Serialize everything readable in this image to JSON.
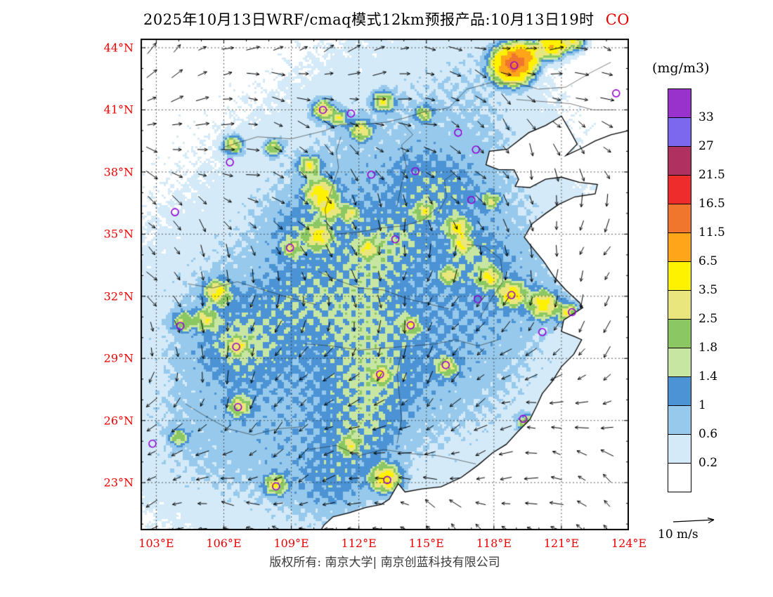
{
  "title": {
    "main": "2025年10月13日WRF/cmaq模式12km预报产品:10月13日19时",
    "species": "CO"
  },
  "colorbar": {
    "units": "(mg/m3)",
    "boundary_labels_top_to_bottom": [
      "33",
      "27",
      "21.5",
      "16.5",
      "11.5",
      "6.5",
      "3.5",
      "2.5",
      "1.8",
      "1.4",
      "1",
      "0.6",
      "0.2"
    ],
    "colors_top_to_bottom": [
      "#9932CC",
      "#7B68EE",
      "#B03060",
      "#EE2C2C",
      "#F0762E",
      "#FFA519",
      "#FFF200",
      "#E9E67D",
      "#8BC863",
      "#C7E6A2",
      "#4B93D4",
      "#96C9EC",
      "#D4EAF8",
      "#FFFFFF"
    ]
  },
  "axes": {
    "lat_labels": [
      "44°N",
      "41°N",
      "38°N",
      "35°N",
      "32°N",
      "29°N",
      "26°N",
      "23°N"
    ],
    "lat_values": [
      44,
      41,
      38,
      35,
      32,
      29,
      26,
      23
    ],
    "lon_labels": [
      "103°E",
      "106°E",
      "109°E",
      "112°E",
      "115°E",
      "118°E",
      "121°E",
      "124°E"
    ],
    "lon_values": [
      103,
      106,
      109,
      112,
      115,
      118,
      121,
      124
    ]
  },
  "wind_legend": {
    "label": "10 m/s"
  },
  "footer": {
    "copyright": "版权所有: 南京大学| 南京创蓝科技有限公司"
  },
  "colors": {
    "axis_label": "#ee0000",
    "title_species": "#e60000",
    "city_marker": "#9400D3",
    "coastline": "#000000",
    "gridline": "#333333"
  },
  "chart_data": {
    "type": "heatmap",
    "title": "2025年10月13日WRF/cmaq模式12km预报产品:10月13日19时 CO",
    "species": "CO",
    "units": "mg/m3",
    "lon_range": [
      102.3,
      124.0
    ],
    "lat_range": [
      20.7,
      44.44
    ],
    "lon_ticks": [
      103,
      106,
      109,
      112,
      115,
      118,
      121,
      124
    ],
    "lat_ticks": [
      23,
      26,
      29,
      32,
      35,
      38,
      41,
      44
    ],
    "levels": [
      0.2,
      0.6,
      1,
      1.4,
      1.8,
      2.5,
      3.5,
      6.5,
      11.5,
      16.5,
      21.5,
      27,
      33
    ],
    "level_colors_ascending": [
      "#FFFFFF",
      "#D4EAF8",
      "#96C9EC",
      "#4B93D4",
      "#C7E6A2",
      "#8BC863",
      "#E9E67D",
      "#FFF200",
      "#FFA519",
      "#F0762E",
      "#EE2C2C",
      "#B03060",
      "#7B68EE",
      "#9932CC"
    ],
    "wind_reference": {
      "speed": 10,
      "units": "m/s"
    },
    "city_markers": [
      [
        111.65,
        40.82
      ],
      [
        116.41,
        39.9
      ],
      [
        117.2,
        39.08
      ],
      [
        114.51,
        38.04
      ],
      [
        112.55,
        37.87
      ],
      [
        106.27,
        38.47
      ],
      [
        103.83,
        36.06
      ],
      [
        108.94,
        34.34
      ],
      [
        113.62,
        34.75
      ],
      [
        117.0,
        36.65
      ],
      [
        117.28,
        31.86
      ],
      [
        118.78,
        32.06
      ],
      [
        121.47,
        31.23
      ],
      [
        120.15,
        30.27
      ],
      [
        114.3,
        30.6
      ],
      [
        112.94,
        28.23
      ],
      [
        115.86,
        28.68
      ],
      [
        104.07,
        30.57
      ],
      [
        106.55,
        29.56
      ],
      [
        106.63,
        26.65
      ],
      [
        102.83,
        24.88
      ],
      [
        108.32,
        22.82
      ],
      [
        113.26,
        23.13
      ],
      [
        119.3,
        26.08
      ],
      [
        123.43,
        41.8
      ],
      [
        118.9,
        43.15
      ],
      [
        110.4,
        41.0
      ]
    ],
    "coastline": [
      [
        124.0,
        40.0
      ],
      [
        123.2,
        39.8
      ],
      [
        122.5,
        39.5
      ],
      [
        121.9,
        39.15
      ],
      [
        121.2,
        38.8
      ],
      [
        121.7,
        39.35
      ],
      [
        121.4,
        39.95
      ],
      [
        121.0,
        40.7
      ],
      [
        120.3,
        40.25
      ],
      [
        119.55,
        39.9
      ],
      [
        118.6,
        39.1
      ],
      [
        117.8,
        39.0
      ],
      [
        117.65,
        38.35
      ],
      [
        118.2,
        38.12
      ],
      [
        118.9,
        38.1
      ],
      [
        119.1,
        37.65
      ],
      [
        118.95,
        37.3
      ],
      [
        119.6,
        37.25
      ],
      [
        120.3,
        37.65
      ],
      [
        121.0,
        37.75
      ],
      [
        121.8,
        37.5
      ],
      [
        122.6,
        37.4
      ],
      [
        122.5,
        36.95
      ],
      [
        121.6,
        36.8
      ],
      [
        120.9,
        36.45
      ],
      [
        120.3,
        36.0
      ],
      [
        119.7,
        35.5
      ],
      [
        119.35,
        34.85
      ],
      [
        119.6,
        34.5
      ],
      [
        120.2,
        33.7
      ],
      [
        120.7,
        32.9
      ],
      [
        121.2,
        32.3
      ],
      [
        121.8,
        31.7
      ],
      [
        121.95,
        31.45
      ],
      [
        121.1,
        30.85
      ],
      [
        121.0,
        30.3
      ],
      [
        121.6,
        30.05
      ],
      [
        121.9,
        29.9
      ],
      [
        121.55,
        29.2
      ],
      [
        121.0,
        28.6
      ],
      [
        120.6,
        27.9
      ],
      [
        120.15,
        27.3
      ],
      [
        119.9,
        26.7
      ],
      [
        119.6,
        26.05
      ],
      [
        119.05,
        25.45
      ],
      [
        118.55,
        24.85
      ],
      [
        117.95,
        24.45
      ],
      [
        117.3,
        23.85
      ],
      [
        116.55,
        23.25
      ],
      [
        115.65,
        22.8
      ],
      [
        114.8,
        22.7
      ],
      [
        114.05,
        22.55
      ],
      [
        113.75,
        22.95
      ],
      [
        113.35,
        22.2
      ],
      [
        113.0,
        21.95
      ],
      [
        112.3,
        21.8
      ],
      [
        111.6,
        21.55
      ],
      [
        110.85,
        21.35
      ],
      [
        110.45,
        20.95
      ],
      [
        110.25,
        20.6
      ]
    ],
    "province_borders": [
      [
        [
          106.0,
          39.2
        ],
        [
          107.5,
          39.7
        ],
        [
          109.0,
          39.6
        ],
        [
          110.5,
          40.0
        ],
        [
          111.2,
          40.3
        ],
        [
          112.2,
          40.3
        ],
        [
          113.2,
          40.4
        ],
        [
          114.0,
          40.6
        ],
        [
          114.9,
          40.9
        ],
        [
          116.0,
          41.1
        ],
        [
          116.8,
          42.0
        ],
        [
          117.8,
          42.3
        ],
        [
          119.0,
          42.3
        ],
        [
          120.0,
          42.0
        ],
        [
          121.2,
          42.1
        ],
        [
          122.3,
          42.8
        ],
        [
          123.2,
          43.3
        ]
      ],
      [
        [
          110.9,
          34.6
        ],
        [
          110.6,
          35.3
        ],
        [
          110.5,
          36.2
        ],
        [
          110.8,
          37.2
        ],
        [
          111.1,
          38.2
        ],
        [
          111.0,
          39.0
        ],
        [
          111.2,
          39.7
        ]
      ],
      [
        [
          113.7,
          36.4
        ],
        [
          113.9,
          37.4
        ],
        [
          114.1,
          38.3
        ],
        [
          113.9,
          39.3
        ],
        [
          114.4,
          39.8
        ],
        [
          113.9,
          40.4
        ]
      ],
      [
        [
          110.2,
          33.2
        ],
        [
          111.0,
          32.8
        ],
        [
          112.0,
          32.4
        ],
        [
          113.1,
          32.3
        ],
        [
          114.1,
          31.9
        ],
        [
          115.2,
          31.6
        ],
        [
          116.0,
          31.4
        ]
      ],
      [
        [
          111.0,
          35.0
        ],
        [
          112.0,
          35.1
        ],
        [
          113.0,
          35.3
        ],
        [
          114.0,
          35.4
        ],
        [
          114.9,
          35.7
        ],
        [
          115.4,
          36.2
        ]
      ],
      [
        [
          115.5,
          36.0
        ],
        [
          115.9,
          36.8
        ],
        [
          115.8,
          37.6
        ],
        [
          116.3,
          38.0
        ]
      ],
      [
        [
          109.6,
          29.7
        ],
        [
          110.8,
          29.6
        ],
        [
          112.0,
          29.4
        ],
        [
          113.2,
          29.5
        ],
        [
          114.3,
          29.6
        ],
        [
          115.4,
          29.7
        ],
        [
          116.3,
          29.9
        ],
        [
          117.3,
          29.6
        ],
        [
          118.2,
          29.9
        ]
      ],
      [
        [
          113.7,
          24.9
        ],
        [
          113.9,
          26.1
        ],
        [
          113.8,
          27.2
        ],
        [
          113.7,
          28.3
        ],
        [
          113.9,
          29.4
        ]
      ],
      [
        [
          109.8,
          24.6
        ],
        [
          111.0,
          24.8
        ],
        [
          112.0,
          24.3
        ],
        [
          113.1,
          24.6
        ],
        [
          114.3,
          24.4
        ],
        [
          115.5,
          24.3
        ],
        [
          116.4,
          24.1
        ],
        [
          117.2,
          23.9
        ]
      ],
      [
        [
          104.4,
          32.6
        ],
        [
          105.5,
          32.4
        ],
        [
          106.6,
          32.7
        ],
        [
          107.8,
          32.3
        ],
        [
          109.0,
          31.9
        ],
        [
          110.1,
          31.6
        ]
      ],
      [
        [
          104.3,
          26.8
        ],
        [
          105.2,
          26.2
        ],
        [
          106.2,
          25.6
        ],
        [
          107.3,
          25.3
        ],
        [
          108.4,
          25.6
        ],
        [
          109.5,
          25.7
        ]
      ],
      [
        [
          117.4,
          31.0
        ],
        [
          117.9,
          31.9
        ],
        [
          118.4,
          32.7
        ],
        [
          118.3,
          33.8
        ],
        [
          117.6,
          34.4
        ],
        [
          116.8,
          34.5
        ]
      ],
      [
        [
          119.0,
          41.5
        ],
        [
          120.2,
          41.4
        ],
        [
          121.4,
          41.3
        ],
        [
          122.4,
          41.0
        ],
        [
          123.4,
          41.0
        ]
      ]
    ],
    "field_blobs": {
      "base": [
        [
          112.0,
          31.0,
          0.42,
          7.0
        ],
        [
          109.0,
          27.5,
          0.36,
          5.0
        ],
        [
          115.5,
          35.5,
          0.34,
          4.0
        ],
        [
          113.5,
          41.8,
          0.24,
          2.8
        ],
        [
          117.5,
          39.0,
          0.28,
          2.2
        ],
        [
          106.5,
          30.5,
          0.4,
          2.4
        ],
        [
          111.0,
          36.5,
          0.32,
          2.8
        ],
        [
          119.0,
          32.5,
          0.36,
          2.2
        ],
        [
          116.5,
          28.5,
          0.34,
          2.8
        ],
        [
          110.0,
          23.5,
          0.34,
          2.4
        ],
        [
          104.6,
          24.8,
          0.28,
          2.2
        ],
        [
          117.6,
          43.4,
          0.3,
          1.8
        ],
        [
          112.5,
          33.8,
          0.5,
          1.1
        ],
        [
          112.2,
          30.8,
          0.55,
          1.4
        ],
        [
          112.5,
          27.8,
          0.6,
          1.4
        ],
        [
          112.2,
          25.3,
          0.5,
          1.1
        ],
        [
          106.8,
          29.7,
          0.55,
          1.2
        ],
        [
          109.4,
          35.3,
          0.45,
          1.0
        ],
        [
          117.1,
          33.9,
          0.5,
          0.9
        ],
        [
          113.9,
          34.9,
          0.4,
          0.9
        ],
        [
          110.9,
          22.9,
          0.45,
          1.0
        ],
        [
          116.3,
          36.8,
          0.35,
          0.9
        ],
        [
          114.8,
          37.6,
          0.38,
          1.0
        ],
        [
          109.6,
          32.0,
          0.4,
          1.2
        ]
      ],
      "hotspots": [
        [
          118.85,
          43.2,
          13.0,
          0.5
        ],
        [
          119.4,
          43.6,
          5.0,
          0.35
        ],
        [
          120.6,
          44.15,
          6.0,
          0.4
        ],
        [
          121.6,
          44.3,
          3.0,
          0.3
        ],
        [
          110.4,
          41.0,
          3.2,
          0.3
        ],
        [
          111.1,
          40.6,
          2.4,
          0.25
        ],
        [
          112.1,
          40.0,
          2.8,
          0.3
        ],
        [
          113.1,
          41.4,
          2.6,
          0.3
        ],
        [
          114.9,
          40.8,
          2.0,
          0.25
        ],
        [
          106.4,
          39.3,
          2.6,
          0.3
        ],
        [
          108.2,
          39.2,
          2.4,
          0.25
        ],
        [
          109.8,
          38.3,
          2.8,
          0.3
        ],
        [
          110.3,
          37.0,
          3.8,
          0.4
        ],
        [
          110.7,
          36.2,
          3.0,
          0.3
        ],
        [
          111.6,
          36.0,
          2.2,
          0.25
        ],
        [
          110.2,
          34.9,
          3.2,
          0.35
        ],
        [
          112.4,
          34.3,
          2.4,
          0.25
        ],
        [
          109.0,
          34.3,
          2.0,
          0.25
        ],
        [
          116.4,
          35.3,
          3.2,
          0.3
        ],
        [
          116.6,
          34.5,
          2.8,
          0.25
        ],
        [
          116.0,
          33.0,
          2.2,
          0.25
        ],
        [
          117.8,
          32.9,
          2.8,
          0.3
        ],
        [
          118.8,
          32.1,
          4.0,
          0.35
        ],
        [
          120.2,
          31.6,
          3.6,
          0.4
        ],
        [
          121.3,
          31.2,
          2.8,
          0.3
        ],
        [
          105.7,
          32.2,
          3.2,
          0.35
        ],
        [
          105.2,
          30.9,
          2.4,
          0.3
        ],
        [
          104.2,
          30.8,
          2.0,
          0.3
        ],
        [
          106.6,
          29.6,
          2.4,
          0.25
        ],
        [
          106.7,
          26.7,
          2.4,
          0.3
        ],
        [
          104.0,
          25.2,
          1.8,
          0.25
        ],
        [
          108.3,
          22.9,
          2.8,
          0.3
        ],
        [
          113.2,
          23.2,
          4.2,
          0.4
        ],
        [
          111.6,
          24.8,
          2.2,
          0.25
        ],
        [
          113.0,
          28.2,
          2.2,
          0.25
        ],
        [
          114.3,
          30.6,
          2.4,
          0.25
        ],
        [
          115.9,
          28.6,
          2.3,
          0.3
        ],
        [
          119.4,
          25.9,
          2.0,
          0.25
        ],
        [
          114.9,
          36.1,
          2.2,
          0.25
        ],
        [
          117.9,
          36.6,
          2.0,
          0.25
        ]
      ]
    }
  }
}
